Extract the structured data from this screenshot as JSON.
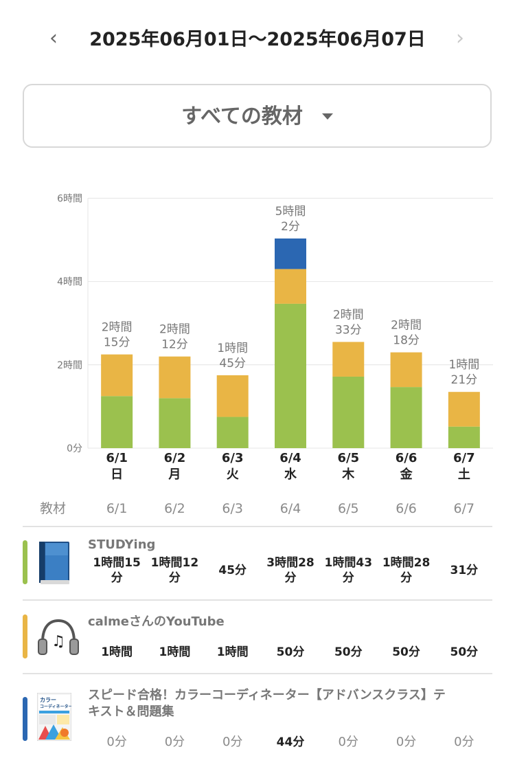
{
  "header": {
    "prev_icon": "chevron-left-icon",
    "next_icon": "chevron-right-icon",
    "prev_glyph": "‹",
    "next_glyph": "›",
    "date_range": "2025年06月01日〜2025年06月07日"
  },
  "filter": {
    "selected": "すべての教材",
    "caret_icon": "caret-down-icon"
  },
  "colors": {
    "studying": "#9bc14e",
    "youtube": "#e9b545",
    "speed": "#2b67b2",
    "grid": "#e4e4e4"
  },
  "chart_data": {
    "type": "bar",
    "stacked": true,
    "categories": [
      "6/1",
      "6/2",
      "6/3",
      "6/4",
      "6/5",
      "6/6",
      "6/7"
    ],
    "category_days": [
      "日",
      "月",
      "火",
      "水",
      "木",
      "金",
      "土"
    ],
    "y_ticks": [
      "0分",
      "2時間",
      "4時間",
      "6時間"
    ],
    "ylim_hours": [
      0,
      6
    ],
    "grid": true,
    "series": [
      {
        "values_hours": [
          1.25,
          1.2,
          0.75,
          3.4667,
          1.7167,
          1.4667,
          0.5167
        ]
      },
      {
        "values_hours": [
          1.0,
          1.0,
          1.0,
          0.8333,
          0.8333,
          0.8333,
          0.8333
        ]
      },
      {
        "values_hours": [
          0,
          0,
          0,
          0.7333,
          0,
          0,
          0
        ]
      }
    ],
    "totals": [
      [
        "2時間",
        "15分"
      ],
      [
        "2時間",
        "12分"
      ],
      [
        "1時間",
        "45分"
      ],
      [
        "5時間",
        "2分"
      ],
      [
        "2時間",
        "33分"
      ],
      [
        "2時間",
        "18分"
      ],
      [
        "1時間",
        "21分"
      ]
    ]
  },
  "table": {
    "header_label": "教材",
    "dates": [
      "6/1",
      "6/2",
      "6/3",
      "6/4",
      "6/5",
      "6/6",
      "6/7"
    ],
    "rows": [
      {
        "title": "STUDYing",
        "icon": "book-icon",
        "cells": [
          [
            "1時間15",
            "分"
          ],
          [
            "1時間12",
            "分"
          ],
          [
            "45分"
          ],
          [
            "3時間28",
            "分"
          ],
          [
            "1時間43",
            "分"
          ],
          [
            "1時間28",
            "分"
          ],
          [
            "31分"
          ]
        ]
      },
      {
        "title": "calmeさんのYouTube",
        "icon": "headphones-icon",
        "cells": [
          [
            "1時間"
          ],
          [
            "1時間"
          ],
          [
            "1時間"
          ],
          [
            "50分"
          ],
          [
            "50分"
          ],
          [
            "50分"
          ],
          [
            "50分"
          ]
        ]
      },
      {
        "title_line1": "スピード合格！カラーコーディネーター【アドバンスクラス】テ",
        "title_line2": "キスト＆問題集",
        "icon": "textbook-cover-icon",
        "cover_text1": "カラー",
        "cover_text2": "コーディネーター",
        "cells": [
          [
            "0分"
          ],
          [
            "0分"
          ],
          [
            "0分"
          ],
          [
            "44分"
          ],
          [
            "0分"
          ],
          [
            "0分"
          ],
          [
            "0分"
          ]
        ]
      }
    ]
  }
}
